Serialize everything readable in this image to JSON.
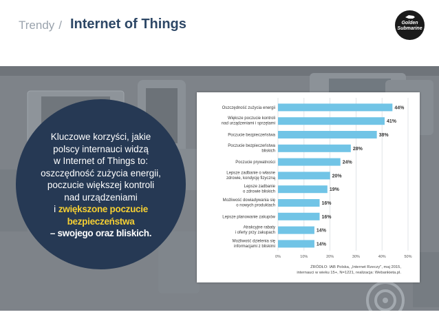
{
  "header": {
    "breadcrumb": "Trendy",
    "separator": "/",
    "title": "Internet of Things"
  },
  "logo": {
    "line1": "Golden",
    "line2": "Submarine"
  },
  "callout": {
    "lines": [
      "Kluczowe korzyści, jakie",
      "polscy internauci widzą",
      "w Internet of Things to:",
      "oszczędność zużycia energii,",
      "poczucie większej kontroli",
      "nad urządzeniami"
    ],
    "prefix": "i ",
    "highlight1": "zwiększone poczucie",
    "highlight2": "bezpieczeństwa",
    "highlight3": "– swojego oraz bliskich."
  },
  "colors": {
    "bar": "#71c4e6",
    "circle": "#263954",
    "highlight": "#f5cf33",
    "title": "#2d4766"
  },
  "chart_data": {
    "type": "bar",
    "orientation": "horizontal",
    "categories": [
      [
        "Oszczędność zużycia energii"
      ],
      [
        "Większe poczucie kontroli",
        "nad urządzeniami i sprzętami"
      ],
      [
        "Poczucie bezpieczeństwa"
      ],
      [
        "Poczucie bezpieczeństwa",
        "bliskich"
      ],
      [
        "Poczucie prywatności"
      ],
      [
        "Lepsze zadbanie o własne",
        "zdrowie, kondycję fizyczną"
      ],
      [
        "Lepsze zadbanie",
        "o zdrowie bliskich"
      ],
      [
        "Możliwość dowiadywania się",
        "o nowych produktach"
      ],
      [
        "Lepsze planowanie zakupów"
      ],
      [
        "Atrakcyjne rabaty",
        "i oferty przy zakupach"
      ],
      [
        "Możliwość dzielenia się",
        "informacjami z bliskimi"
      ]
    ],
    "values": [
      44,
      41,
      38,
      28,
      24,
      20,
      19,
      16,
      16,
      14,
      14
    ],
    "value_labels": [
      "44%",
      "41%",
      "38%",
      "28%",
      "24%",
      "20%",
      "19%",
      "16%",
      "16%",
      "14%",
      "14%"
    ],
    "xlim": [
      0,
      50
    ],
    "xticks": [
      "0%",
      "10%",
      "20%",
      "30%",
      "40%",
      "50%"
    ],
    "grid": true,
    "source_lines": [
      "ŹRÓDŁO: IAB Polska, „Internet Rzeczy\", maj 2015,",
      "internauci w wieku 15+, N=1221, realizacja: Webankieta.pl."
    ]
  }
}
